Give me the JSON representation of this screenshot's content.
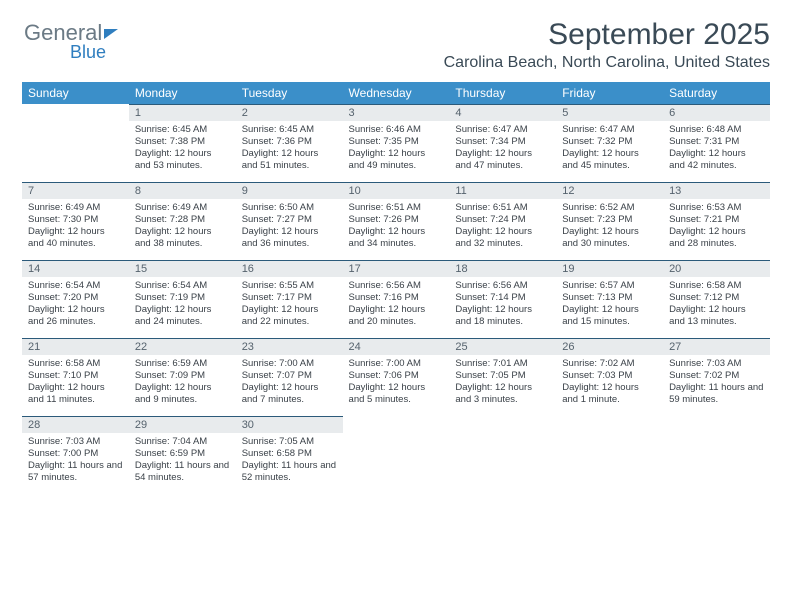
{
  "logo": {
    "text1": "General",
    "text2": "Blue"
  },
  "title": "September 2025",
  "subtitle": "Carolina Beach, North Carolina, United States",
  "headers": [
    "Sunday",
    "Monday",
    "Tuesday",
    "Wednesday",
    "Thursday",
    "Friday",
    "Saturday"
  ],
  "header_bg": "#3b8fc9",
  "header_fg": "#ffffff",
  "daynum_bg": "#e8ebed",
  "daynum_border": "#2b5a7a",
  "text_color": "#3a4148",
  "weeks": [
    [
      null,
      {
        "n": "1",
        "sunrise": "6:45 AM",
        "sunset": "7:38 PM",
        "daylight": "12 hours and 53 minutes."
      },
      {
        "n": "2",
        "sunrise": "6:45 AM",
        "sunset": "7:36 PM",
        "daylight": "12 hours and 51 minutes."
      },
      {
        "n": "3",
        "sunrise": "6:46 AM",
        "sunset": "7:35 PM",
        "daylight": "12 hours and 49 minutes."
      },
      {
        "n": "4",
        "sunrise": "6:47 AM",
        "sunset": "7:34 PM",
        "daylight": "12 hours and 47 minutes."
      },
      {
        "n": "5",
        "sunrise": "6:47 AM",
        "sunset": "7:32 PM",
        "daylight": "12 hours and 45 minutes."
      },
      {
        "n": "6",
        "sunrise": "6:48 AM",
        "sunset": "7:31 PM",
        "daylight": "12 hours and 42 minutes."
      }
    ],
    [
      {
        "n": "7",
        "sunrise": "6:49 AM",
        "sunset": "7:30 PM",
        "daylight": "12 hours and 40 minutes."
      },
      {
        "n": "8",
        "sunrise": "6:49 AM",
        "sunset": "7:28 PM",
        "daylight": "12 hours and 38 minutes."
      },
      {
        "n": "9",
        "sunrise": "6:50 AM",
        "sunset": "7:27 PM",
        "daylight": "12 hours and 36 minutes."
      },
      {
        "n": "10",
        "sunrise": "6:51 AM",
        "sunset": "7:26 PM",
        "daylight": "12 hours and 34 minutes."
      },
      {
        "n": "11",
        "sunrise": "6:51 AM",
        "sunset": "7:24 PM",
        "daylight": "12 hours and 32 minutes."
      },
      {
        "n": "12",
        "sunrise": "6:52 AM",
        "sunset": "7:23 PM",
        "daylight": "12 hours and 30 minutes."
      },
      {
        "n": "13",
        "sunrise": "6:53 AM",
        "sunset": "7:21 PM",
        "daylight": "12 hours and 28 minutes."
      }
    ],
    [
      {
        "n": "14",
        "sunrise": "6:54 AM",
        "sunset": "7:20 PM",
        "daylight": "12 hours and 26 minutes."
      },
      {
        "n": "15",
        "sunrise": "6:54 AM",
        "sunset": "7:19 PM",
        "daylight": "12 hours and 24 minutes."
      },
      {
        "n": "16",
        "sunrise": "6:55 AM",
        "sunset": "7:17 PM",
        "daylight": "12 hours and 22 minutes."
      },
      {
        "n": "17",
        "sunrise": "6:56 AM",
        "sunset": "7:16 PM",
        "daylight": "12 hours and 20 minutes."
      },
      {
        "n": "18",
        "sunrise": "6:56 AM",
        "sunset": "7:14 PM",
        "daylight": "12 hours and 18 minutes."
      },
      {
        "n": "19",
        "sunrise": "6:57 AM",
        "sunset": "7:13 PM",
        "daylight": "12 hours and 15 minutes."
      },
      {
        "n": "20",
        "sunrise": "6:58 AM",
        "sunset": "7:12 PM",
        "daylight": "12 hours and 13 minutes."
      }
    ],
    [
      {
        "n": "21",
        "sunrise": "6:58 AM",
        "sunset": "7:10 PM",
        "daylight": "12 hours and 11 minutes."
      },
      {
        "n": "22",
        "sunrise": "6:59 AM",
        "sunset": "7:09 PM",
        "daylight": "12 hours and 9 minutes."
      },
      {
        "n": "23",
        "sunrise": "7:00 AM",
        "sunset": "7:07 PM",
        "daylight": "12 hours and 7 minutes."
      },
      {
        "n": "24",
        "sunrise": "7:00 AM",
        "sunset": "7:06 PM",
        "daylight": "12 hours and 5 minutes."
      },
      {
        "n": "25",
        "sunrise": "7:01 AM",
        "sunset": "7:05 PM",
        "daylight": "12 hours and 3 minutes."
      },
      {
        "n": "26",
        "sunrise": "7:02 AM",
        "sunset": "7:03 PM",
        "daylight": "12 hours and 1 minute."
      },
      {
        "n": "27",
        "sunrise": "7:03 AM",
        "sunset": "7:02 PM",
        "daylight": "11 hours and 59 minutes."
      }
    ],
    [
      {
        "n": "28",
        "sunrise": "7:03 AM",
        "sunset": "7:00 PM",
        "daylight": "11 hours and 57 minutes."
      },
      {
        "n": "29",
        "sunrise": "7:04 AM",
        "sunset": "6:59 PM",
        "daylight": "11 hours and 54 minutes."
      },
      {
        "n": "30",
        "sunrise": "7:05 AM",
        "sunset": "6:58 PM",
        "daylight": "11 hours and 52 minutes."
      },
      null,
      null,
      null,
      null
    ]
  ],
  "labels": {
    "sunrise": "Sunrise:",
    "sunset": "Sunset:",
    "daylight": "Daylight:"
  }
}
